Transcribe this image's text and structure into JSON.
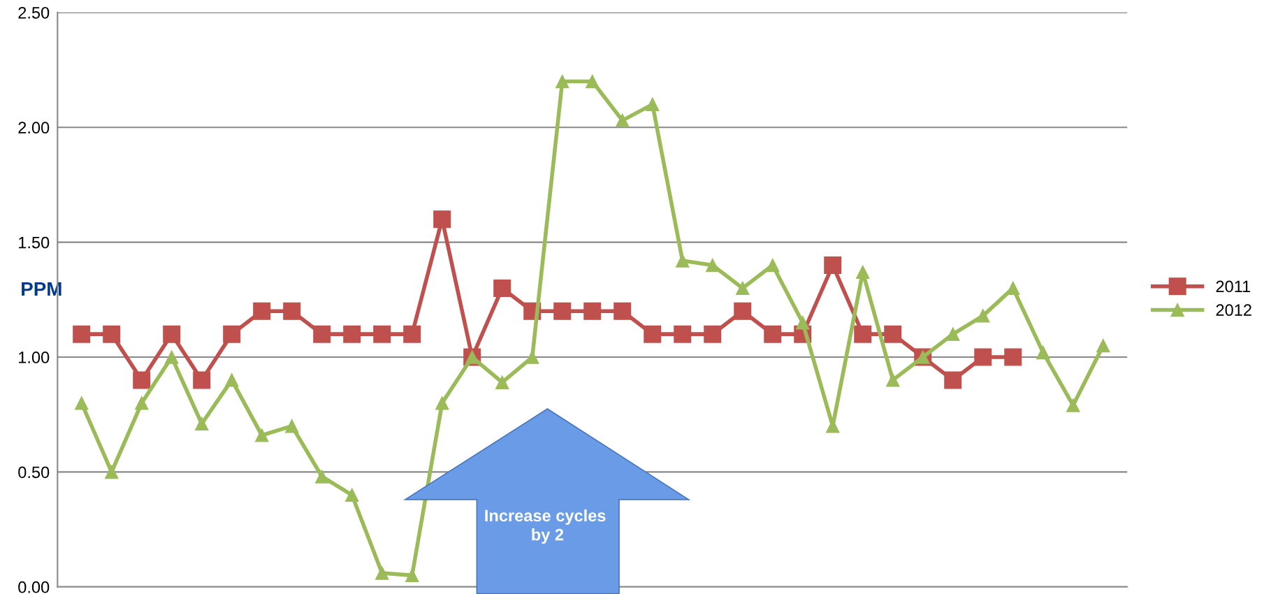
{
  "chart_data": {
    "type": "line",
    "ylabel": "PPM",
    "categories": [
      null,
      null,
      null,
      null,
      null,
      null,
      null,
      null,
      null,
      null,
      null,
      null,
      null,
      null,
      null,
      null,
      null,
      null,
      null,
      null,
      null,
      null,
      null,
      null,
      null,
      null,
      null,
      null,
      null,
      null,
      null,
      null,
      null,
      null,
      null
    ],
    "series": [
      {
        "name": "2011",
        "color": "#c0504d",
        "marker": "square",
        "values": [
          1.1,
          1.1,
          0.9,
          1.1,
          0.9,
          1.1,
          1.2,
          1.2,
          1.1,
          1.1,
          1.1,
          1.1,
          1.6,
          1.0,
          1.3,
          1.2,
          1.2,
          1.2,
          1.2,
          1.1,
          1.1,
          1.1,
          1.2,
          1.1,
          1.1,
          1.4,
          1.1,
          1.1,
          1.0,
          0.9,
          1.0,
          1.0,
          null,
          null,
          null
        ]
      },
      {
        "name": "2012",
        "color": "#9bbb59",
        "marker": "triangle",
        "values": [
          0.8,
          0.5,
          0.8,
          1.0,
          0.71,
          0.9,
          0.66,
          0.7,
          0.48,
          0.4,
          0.06,
          0.05,
          0.8,
          1.0,
          0.89,
          1.0,
          2.2,
          2.2,
          2.03,
          2.1,
          1.42,
          1.4,
          1.3,
          1.4,
          1.15,
          0.7,
          1.37,
          0.9,
          1.0,
          1.1,
          1.18,
          1.3,
          1.02,
          0.79,
          1.05
        ]
      }
    ],
    "ylim": [
      0,
      2.5
    ],
    "yticks": [
      {
        "value": 0,
        "label": "0.00"
      },
      {
        "value": 0.5,
        "label": "0.50"
      },
      {
        "value": 1.0,
        "label": "1.00"
      },
      {
        "value": 1.5,
        "label": "1.50"
      },
      {
        "value": 2.0,
        "label": "2.00"
      },
      {
        "value": 2.5,
        "label": "2.50"
      }
    ],
    "grid": "y",
    "legend": "right",
    "line_style": "solid",
    "annotations": [
      "Increase cycles  by 2"
    ]
  }
}
